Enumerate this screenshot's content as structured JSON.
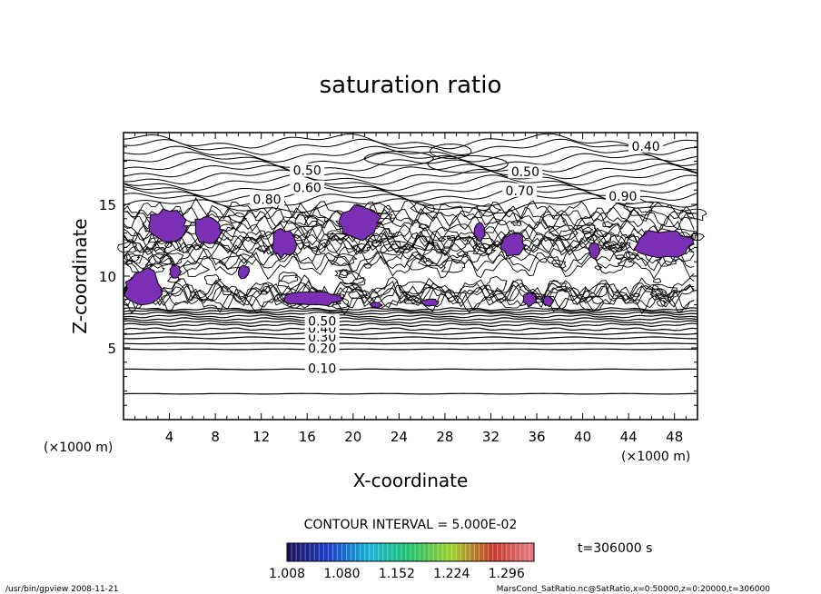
{
  "chart_data": {
    "type": "contour",
    "title": "saturation ratio",
    "xlabel": "X-coordinate",
    "ylabel": "Z-coordinate",
    "x_unit": "(×1000 m)",
    "y_unit": "(×1000 m)",
    "xlim": [
      0,
      50
    ],
    "ylim": [
      0,
      20
    ],
    "x_ticks": [
      4,
      8,
      12,
      16,
      20,
      24,
      28,
      32,
      36,
      40,
      44,
      48
    ],
    "y_ticks": [
      5,
      10,
      15
    ],
    "contour_interval_text": "CONTOUR INTERVAL = 5.000E-02",
    "time_text": "t=306000 s",
    "contour_labels": [
      {
        "text": "0.10",
        "x": 17.3,
        "y": 3.5
      },
      {
        "text": "0.20",
        "x": 17.3,
        "y": 4.9
      },
      {
        "text": "0.30",
        "x": 17.3,
        "y": 5.7
      },
      {
        "text": "0.40",
        "x": 17.3,
        "y": 6.3
      },
      {
        "text": "0.50",
        "x": 17.3,
        "y": 6.8
      },
      {
        "text": "0.40",
        "x": 45.5,
        "y": 19.0
      },
      {
        "text": "0.50",
        "x": 16.0,
        "y": 17.3
      },
      {
        "text": "0.50",
        "x": 35.0,
        "y": 17.2
      },
      {
        "text": "0.60",
        "x": 16.0,
        "y": 16.1
      },
      {
        "text": "0.70",
        "x": 34.5,
        "y": 15.9
      },
      {
        "text": "0.80",
        "x": 12.5,
        "y": 15.3
      },
      {
        "text": "0.90",
        "x": 43.5,
        "y": 15.5
      }
    ],
    "colorbar": {
      "min": 1.008,
      "max": 1.332,
      "tick_labels": [
        "1.008",
        "1.080",
        "1.152",
        "1.224",
        "1.296"
      ],
      "colors": [
        "#1c0c54",
        "#1c3ec8",
        "#16b4d6",
        "#22c06a",
        "#9ed02a",
        "#c83a2a",
        "#e27a86"
      ]
    },
    "shaded_fill_color": "#7a2fb4",
    "shaded_regions": [
      {
        "x": [
          2.0,
          5.5
        ],
        "z": [
          12.3,
          14.7
        ]
      },
      {
        "x": [
          6.0,
          8.5
        ],
        "z": [
          12.2,
          14.3
        ]
      },
      {
        "x": [
          10.0,
          11.0
        ],
        "z": [
          9.8,
          10.8
        ]
      },
      {
        "x": [
          12.8,
          15.0
        ],
        "z": [
          11.3,
          13.3
        ]
      },
      {
        "x": [
          14.0,
          19.0
        ],
        "z": [
          7.9,
          9.0
        ]
      },
      {
        "x": [
          18.5,
          22.5
        ],
        "z": [
          12.5,
          14.9
        ]
      },
      {
        "x": [
          0.0,
          3.5
        ],
        "z": [
          7.8,
          10.5
        ]
      },
      {
        "x": [
          4.0,
          5.0
        ],
        "z": [
          9.8,
          10.8
        ]
      },
      {
        "x": [
          30.5,
          31.5
        ],
        "z": [
          12.4,
          13.8
        ]
      },
      {
        "x": [
          32.8,
          35.0
        ],
        "z": [
          11.3,
          13.0
        ]
      },
      {
        "x": [
          44.5,
          49.5
        ],
        "z": [
          11.2,
          13.3
        ]
      },
      {
        "x": [
          40.5,
          41.5
        ],
        "z": [
          11.2,
          12.3
        ]
      },
      {
        "x": [
          34.8,
          36.0
        ],
        "z": [
          7.9,
          8.9
        ]
      },
      {
        "x": [
          36.5,
          37.5
        ],
        "z": [
          7.9,
          8.6
        ]
      },
      {
        "x": [
          26.0,
          27.5
        ],
        "z": [
          7.9,
          8.4
        ]
      },
      {
        "x": [
          21.5,
          22.5
        ],
        "z": [
          7.8,
          8.2
        ]
      }
    ],
    "grid": false,
    "legend": "none"
  },
  "footer": {
    "left": "/usr/bin/gpview   2008-11-21",
    "right": "MarsCond_SatRatio.nc@SatRatio,x=0:50000,z=0:20000,t=306000"
  }
}
